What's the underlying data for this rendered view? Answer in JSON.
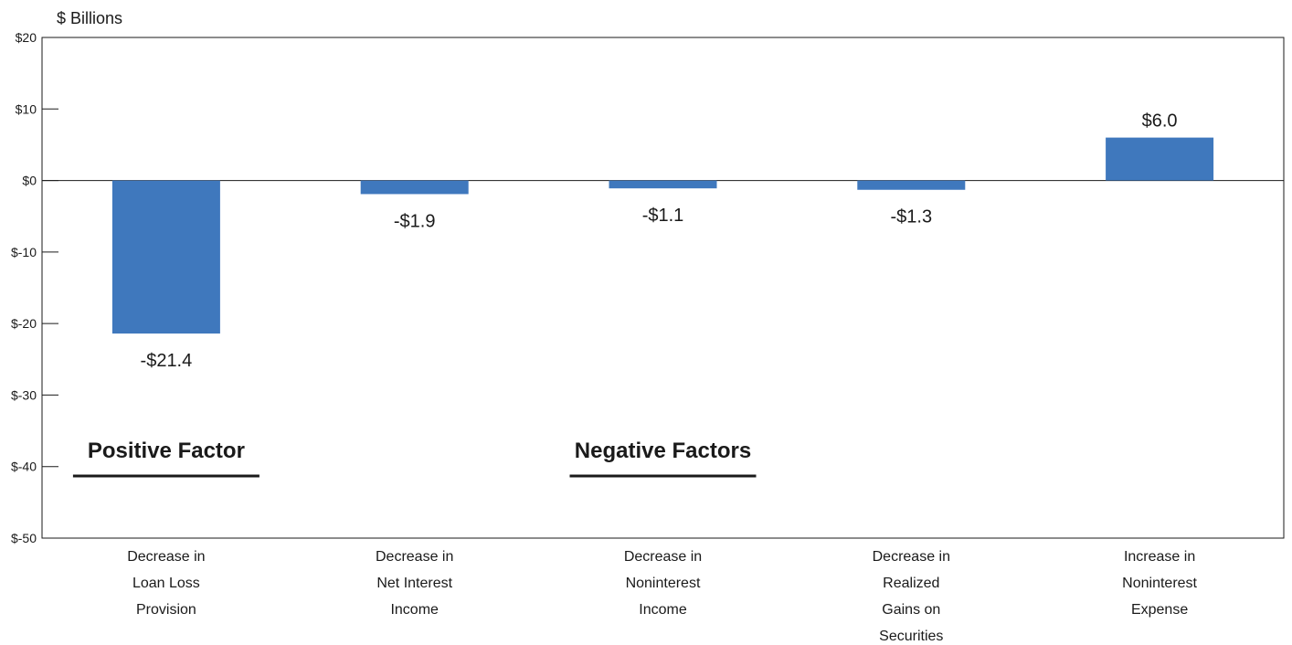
{
  "chart_data": {
    "type": "bar",
    "title": "",
    "ylabel": "$ Billions",
    "xlabel": "",
    "ylim": [
      -50,
      20
    ],
    "yticks": [
      20,
      10,
      0,
      -10,
      -20,
      -30,
      -40,
      -50
    ],
    "ytick_labels": [
      "$20",
      "$10",
      "$0",
      "$-10",
      "$-20",
      "$-30",
      "$-40",
      "$-50"
    ],
    "grid": false,
    "bar_color": "#3f78bd",
    "categories": [
      [
        "Decrease in",
        "Loan Loss",
        "Provision"
      ],
      [
        "Decrease in",
        "Net Interest",
        "Income"
      ],
      [
        "Decrease in",
        "Noninterest",
        "Income"
      ],
      [
        "Decrease in",
        "Realized",
        "Gains on",
        "Securities"
      ],
      [
        "Increase in",
        "Noninterest",
        "Expense"
      ]
    ],
    "values": [
      -21.4,
      -1.9,
      -1.1,
      -1.3,
      6.0
    ],
    "data_labels": [
      "-$21.4",
      "-$1.9",
      "-$1.1",
      "-$1.3",
      "$6.0"
    ],
    "annotations": [
      {
        "text": "Positive Factor",
        "anchor_category": 0
      },
      {
        "text": "Negative Factors",
        "anchor_category": 2
      }
    ]
  }
}
